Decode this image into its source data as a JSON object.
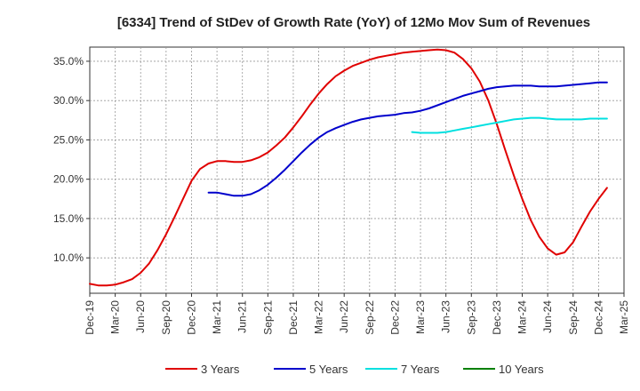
{
  "chart_data": {
    "type": "line",
    "title": "[6334]  Trend of StDev of Growth Rate (YoY) of 12Mo Mov Sum of Revenues",
    "xlabel": "",
    "ylabel": "",
    "ylim": [
      5.5,
      36.8
    ],
    "y_ticks": [
      10,
      15,
      20,
      25,
      30,
      35
    ],
    "y_tick_labels": [
      "10.0%",
      "15.0%",
      "20.0%",
      "25.0%",
      "30.0%",
      "35.0%"
    ],
    "x_ticks": [
      "Dec-19",
      "Mar-20",
      "Jun-20",
      "Sep-20",
      "Dec-20",
      "Mar-21",
      "Jun-21",
      "Sep-21",
      "Dec-21",
      "Mar-22",
      "Jun-22",
      "Sep-22",
      "Dec-22",
      "Mar-23",
      "Jun-23",
      "Sep-23",
      "Dec-23",
      "Mar-24",
      "Jun-24",
      "Sep-24",
      "Dec-24",
      "Mar-25"
    ],
    "grid": true,
    "legend_position": "bottom",
    "series": [
      {
        "name": "3 Years",
        "color": "#e00000",
        "points": [
          [
            0,
            6.7
          ],
          [
            1,
            6.5
          ],
          [
            2,
            6.5
          ],
          [
            3,
            6.6
          ],
          [
            4,
            6.9
          ],
          [
            5,
            7.3
          ],
          [
            6,
            8.1
          ],
          [
            7,
            9.3
          ],
          [
            8,
            11.0
          ],
          [
            9,
            13.0
          ],
          [
            10,
            15.2
          ],
          [
            11,
            17.5
          ],
          [
            12,
            19.8
          ],
          [
            13,
            21.3
          ],
          [
            14,
            22.0
          ],
          [
            15,
            22.3
          ],
          [
            16,
            22.3
          ],
          [
            17,
            22.2
          ],
          [
            18,
            22.2
          ],
          [
            19,
            22.4
          ],
          [
            20,
            22.8
          ],
          [
            21,
            23.4
          ],
          [
            22,
            24.3
          ],
          [
            23,
            25.3
          ],
          [
            24,
            26.6
          ],
          [
            25,
            28.0
          ],
          [
            26,
            29.5
          ],
          [
            27,
            30.9
          ],
          [
            28,
            32.1
          ],
          [
            29,
            33.1
          ],
          [
            30,
            33.8
          ],
          [
            31,
            34.4
          ],
          [
            32,
            34.8
          ],
          [
            33,
            35.2
          ],
          [
            34,
            35.5
          ],
          [
            35,
            35.7
          ],
          [
            36,
            35.9
          ],
          [
            37,
            36.1
          ],
          [
            38,
            36.2
          ],
          [
            39,
            36.3
          ],
          [
            40,
            36.4
          ],
          [
            41,
            36.5
          ],
          [
            42,
            36.4
          ],
          [
            43,
            36.1
          ],
          [
            44,
            35.3
          ],
          [
            45,
            34.1
          ],
          [
            46,
            32.4
          ],
          [
            47,
            30.0
          ],
          [
            48,
            27.0
          ],
          [
            49,
            23.7
          ],
          [
            50,
            20.5
          ],
          [
            51,
            17.5
          ],
          [
            52,
            14.8
          ],
          [
            53,
            12.7
          ],
          [
            54,
            11.2
          ],
          [
            55,
            10.4
          ],
          [
            56,
            10.7
          ],
          [
            57,
            12.0
          ],
          [
            58,
            14.0
          ],
          [
            59,
            15.9
          ],
          [
            60,
            17.5
          ],
          [
            61,
            18.9
          ]
        ]
      },
      {
        "name": "5 Years",
        "color": "#0000cc",
        "points": [
          [
            14,
            18.3
          ],
          [
            15,
            18.3
          ],
          [
            16,
            18.1
          ],
          [
            17,
            17.9
          ],
          [
            18,
            17.9
          ],
          [
            19,
            18.1
          ],
          [
            20,
            18.6
          ],
          [
            21,
            19.3
          ],
          [
            22,
            20.2
          ],
          [
            23,
            21.2
          ],
          [
            24,
            22.3
          ],
          [
            25,
            23.4
          ],
          [
            26,
            24.4
          ],
          [
            27,
            25.3
          ],
          [
            28,
            26.0
          ],
          [
            29,
            26.5
          ],
          [
            30,
            26.9
          ],
          [
            31,
            27.3
          ],
          [
            32,
            27.6
          ],
          [
            33,
            27.8
          ],
          [
            34,
            28.0
          ],
          [
            35,
            28.1
          ],
          [
            36,
            28.2
          ],
          [
            37,
            28.4
          ],
          [
            38,
            28.5
          ],
          [
            39,
            28.7
          ],
          [
            40,
            29.0
          ],
          [
            41,
            29.4
          ],
          [
            42,
            29.8
          ],
          [
            43,
            30.2
          ],
          [
            44,
            30.6
          ],
          [
            45,
            30.9
          ],
          [
            46,
            31.2
          ],
          [
            47,
            31.5
          ],
          [
            48,
            31.7
          ],
          [
            49,
            31.8
          ],
          [
            50,
            31.9
          ],
          [
            51,
            31.9
          ],
          [
            52,
            31.9
          ],
          [
            53,
            31.8
          ],
          [
            54,
            31.8
          ],
          [
            55,
            31.8
          ],
          [
            56,
            31.9
          ],
          [
            57,
            32.0
          ],
          [
            58,
            32.1
          ],
          [
            59,
            32.2
          ],
          [
            60,
            32.3
          ],
          [
            61,
            32.3
          ]
        ]
      },
      {
        "name": "7 Years",
        "color": "#00e0e0",
        "points": [
          [
            38,
            26.0
          ],
          [
            39,
            25.9
          ],
          [
            40,
            25.9
          ],
          [
            41,
            25.9
          ],
          [
            42,
            26.0
          ],
          [
            43,
            26.2
          ],
          [
            44,
            26.4
          ],
          [
            45,
            26.6
          ],
          [
            46,
            26.8
          ],
          [
            47,
            27.0
          ],
          [
            48,
            27.2
          ],
          [
            49,
            27.4
          ],
          [
            50,
            27.6
          ],
          [
            51,
            27.7
          ],
          [
            52,
            27.8
          ],
          [
            53,
            27.8
          ],
          [
            54,
            27.7
          ],
          [
            55,
            27.6
          ],
          [
            56,
            27.6
          ],
          [
            57,
            27.6
          ],
          [
            58,
            27.6
          ],
          [
            59,
            27.7
          ],
          [
            60,
            27.7
          ],
          [
            61,
            27.7
          ]
        ]
      },
      {
        "name": "10 Years",
        "color": "#008000",
        "points": []
      }
    ]
  }
}
